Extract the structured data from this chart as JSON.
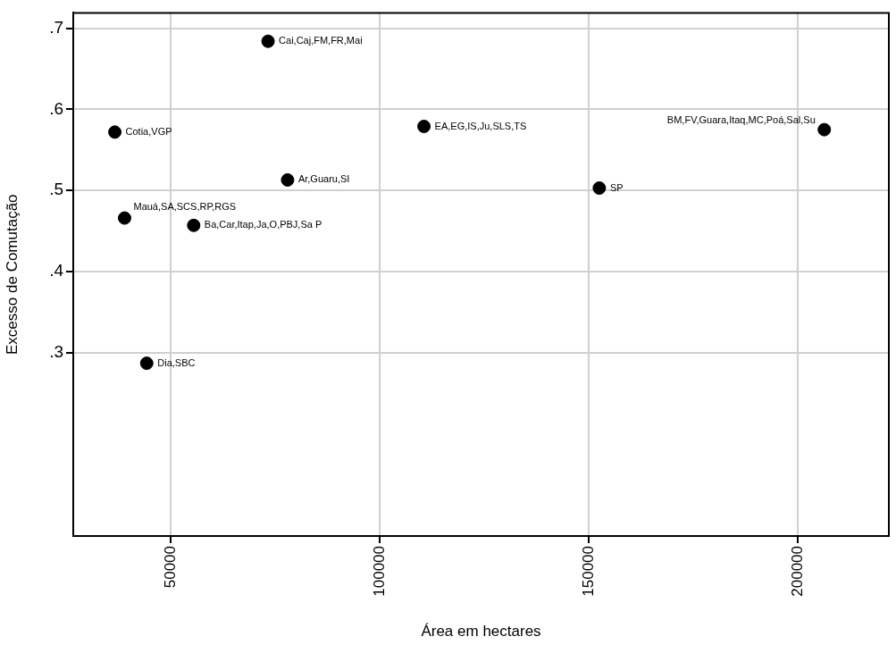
{
  "chart_data": {
    "type": "scatter",
    "xlabel": "Área em hectares",
    "ylabel": "Excesso de Comutação",
    "x": [
      73300,
      36650,
      38980,
      55510,
      77970,
      44280,
      110590,
      152540,
      206360
    ],
    "values": [
      0.684,
      0.572,
      0.466,
      0.457,
      0.513,
      0.287,
      0.579,
      0.503,
      0.575
    ],
    "color": "#000000",
    "marker": "circle",
    "grid": true,
    "xlim": [
      26700,
      221800
    ],
    "xticks": [
      50000,
      100000,
      150000,
      200000
    ],
    "ylim": [
      0.074,
      0.719
    ],
    "yticks": [
      {
        "value": 0.3,
        "label": ".3"
      },
      {
        "value": 0.4,
        "label": ".4"
      },
      {
        "value": 0.5,
        "label": ".5"
      },
      {
        "value": 0.6,
        "label": ".6"
      },
      {
        "value": 0.7,
        "label": ".7"
      }
    ],
    "annotations": [
      {
        "text": "Cai,Caj,FM,FR,Mai",
        "x": 73300,
        "y": 0.684
      },
      {
        "text": "Cotia,VGP",
        "x": 36650,
        "y": 0.572
      },
      {
        "text": "Mauá,SA,SCS,RP,RGS",
        "x": 38980,
        "y": 0.466
      },
      {
        "text": "Ba,Car,Itap,Ja,O,PBJ,Sa P",
        "x": 55510,
        "y": 0.457
      },
      {
        "text": "Ar,Guaru,SI",
        "x": 77970,
        "y": 0.513
      },
      {
        "text": "Dia,SBC",
        "x": 44280,
        "y": 0.287
      },
      {
        "text": "EA,EG,IS,Ju,SLS,TS",
        "x": 110590,
        "y": 0.579
      },
      {
        "text": "SP",
        "x": 152540,
        "y": 0.503
      },
      {
        "text": "BM,FV,Guara,Itaq,MC,Poá,Sal,Su",
        "x": 206360,
        "y": 0.575
      }
    ]
  }
}
